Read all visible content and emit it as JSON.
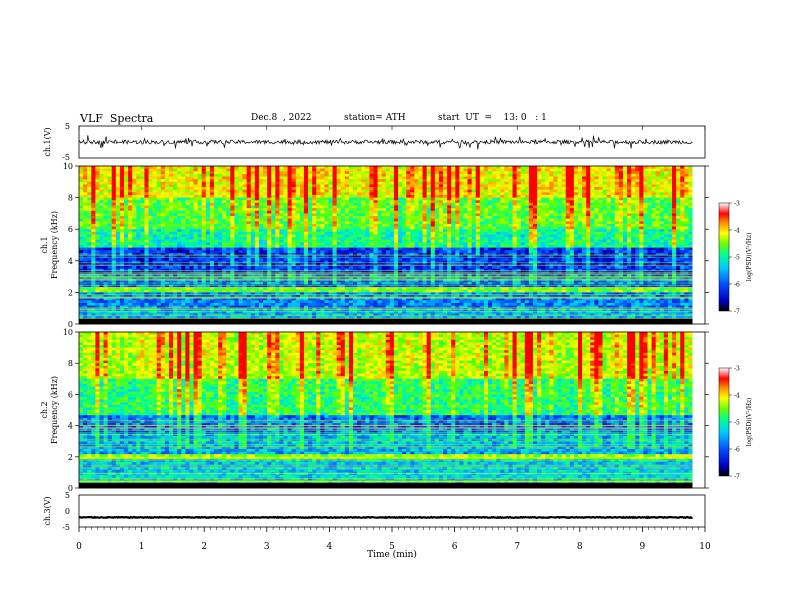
{
  "header": {
    "title": "VLF  Spectra",
    "date": "Dec.8  , 2022",
    "station": "station= ATH",
    "start": "start  UT  =    13: 0   : 1"
  },
  "chart_data": [
    {
      "type": "line",
      "panel": "ch1-waveform",
      "ylabel": "ch.1(V)",
      "ylim": [
        -5,
        5
      ],
      "yticks": [
        "5",
        "-5"
      ],
      "xlim": [
        0,
        10
      ],
      "baseline": 0,
      "amplitude_typical": 1.2,
      "series_color": "#000000"
    },
    {
      "type": "heatmap",
      "panel": "ch1-spectrogram",
      "ylabel": "ch.1\nFrequency  (kHz)",
      "ylabel_top": "ch.1",
      "ylabel_bottom": "Frequency  (kHz)",
      "ylim": [
        0,
        10
      ],
      "yticks": [
        "0",
        "2",
        "4",
        "6",
        "8",
        "10"
      ],
      "xlim": [
        0,
        9.8
      ],
      "colorbar": {
        "label": "log(PSD)(V²/Hz)",
        "range": [
          -7,
          -3
        ],
        "ticks": [
          "-3",
          "-4",
          "-5",
          "-6",
          "-7"
        ]
      },
      "bands_khz": [
        {
          "from": 0.0,
          "to": 0.3,
          "level": -7
        },
        {
          "from": 0.3,
          "to": 1.0,
          "level": -5.5
        },
        {
          "from": 1.0,
          "to": 2.0,
          "level": -5.8
        },
        {
          "from": 2.0,
          "to": 2.3,
          "level": -4.5
        },
        {
          "from": 2.3,
          "to": 3.2,
          "level": -5.9
        },
        {
          "from": 3.2,
          "to": 4.8,
          "level": -6.3
        },
        {
          "from": 4.8,
          "to": 6.0,
          "level": -5.2
        },
        {
          "from": 6.0,
          "to": 8.0,
          "level": -4.8
        },
        {
          "from": 8.0,
          "to": 10.0,
          "level": -4.2
        }
      ]
    },
    {
      "type": "heatmap",
      "panel": "ch2-spectrogram",
      "ylabel_top": "ch.2",
      "ylabel_bottom": "Frequency  (kHz)",
      "ylim": [
        0,
        10
      ],
      "yticks": [
        "0",
        "2",
        "4",
        "6",
        "8",
        "10"
      ],
      "xlim": [
        0,
        9.8
      ],
      "colorbar": {
        "label": "log(PSD)(V²/Hz)",
        "range": [
          -7,
          -3
        ],
        "ticks": [
          "-3",
          "-4",
          "-5",
          "-6",
          "-7"
        ]
      },
      "bands_khz": [
        {
          "from": 0.0,
          "to": 0.3,
          "level": -7
        },
        {
          "from": 0.3,
          "to": 1.8,
          "level": -5.4
        },
        {
          "from": 1.8,
          "to": 2.1,
          "level": -4.3
        },
        {
          "from": 2.1,
          "to": 3.5,
          "level": -5.6
        },
        {
          "from": 3.5,
          "to": 4.6,
          "level": -6.0
        },
        {
          "from": 4.6,
          "to": 7.0,
          "level": -5.0
        },
        {
          "from": 7.0,
          "to": 10.0,
          "level": -4.4
        }
      ]
    },
    {
      "type": "line",
      "panel": "ch3-waveform",
      "ylabel": "ch.3(V)",
      "ylim": [
        -5,
        5
      ],
      "yticks": [
        "5",
        "0",
        "-5"
      ],
      "xlim": [
        0,
        10
      ],
      "baseline": -2,
      "amplitude_typical": 0.25,
      "series_color": "#000000"
    }
  ],
  "xaxis": {
    "label": "Time  (min)",
    "ticks": [
      "0",
      "1",
      "2",
      "3",
      "4",
      "5",
      "6",
      "7",
      "8",
      "9",
      "10"
    ]
  },
  "colormap": [
    "#000000",
    "#0000c8",
    "#0050ff",
    "#00c8ff",
    "#00ff96",
    "#64ff00",
    "#ffff00",
    "#ff8c00",
    "#ff0000",
    "#ffffff"
  ]
}
